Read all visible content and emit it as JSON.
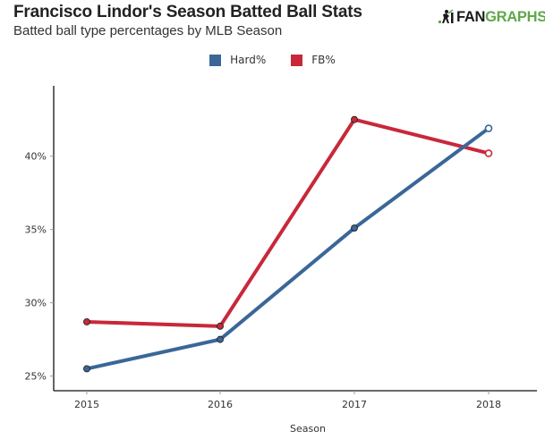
{
  "header": {
    "title": "Francisco Lindor's Season Batted Ball Stats",
    "subtitle": "Batted ball type percentages by MLB Season",
    "logo_part1": "FAN",
    "logo_part2": "GRAPHS",
    "logo_icon": "fangraphs-batter-icon"
  },
  "chart_data": {
    "type": "line",
    "title": "Francisco Lindor's Season Batted Ball Stats",
    "subtitle": "Batted ball type percentages by MLB Season",
    "xlabel": "Season",
    "ylabel": "",
    "x": [
      "2015",
      "2016",
      "2017",
      "2018"
    ],
    "series": [
      {
        "name": "Hard%",
        "color": "#3a6798",
        "values": [
          25.5,
          27.5,
          35.1,
          41.9
        ],
        "last_point_hollow": true
      },
      {
        "name": "FB%",
        "color": "#c8283a",
        "values": [
          28.7,
          28.4,
          42.5,
          40.2
        ],
        "last_point_hollow": true
      }
    ],
    "yticks": [
      25,
      30,
      35,
      40
    ],
    "ytick_labels": [
      "25%",
      "30%",
      "35%",
      "40%"
    ],
    "ylim": [
      24,
      44.8
    ],
    "grid": false,
    "legend_position": "top-center"
  }
}
